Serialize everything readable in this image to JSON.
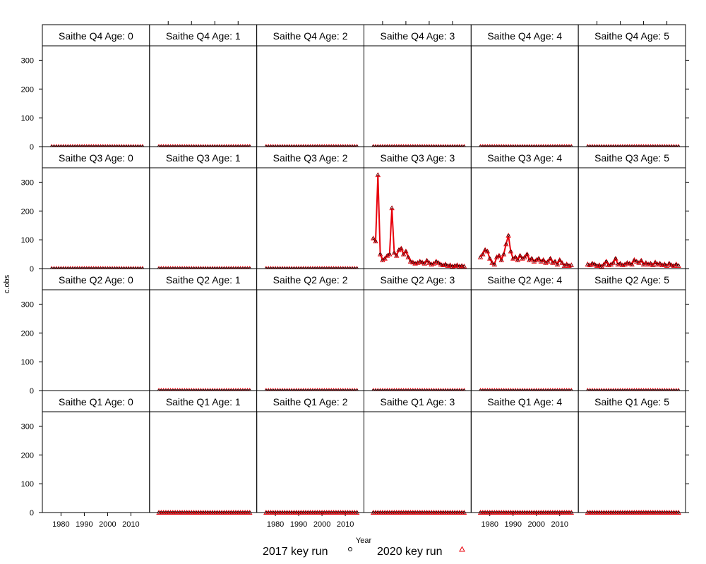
{
  "chart_data": {
    "type": "line",
    "layout": "lattice",
    "xlabel": "Year",
    "ylabel": "c.obs",
    "ylim": [
      0,
      350
    ],
    "xlim": [
      1972,
      2018
    ],
    "x_ticks": [
      1980,
      1990,
      2000,
      2010
    ],
    "y_ticks": [
      0,
      100,
      200,
      300
    ],
    "years": [
      1976,
      1977,
      1978,
      1979,
      1980,
      1981,
      1982,
      1983,
      1984,
      1985,
      1986,
      1987,
      1988,
      1989,
      1990,
      1991,
      1992,
      1993,
      1994,
      1995,
      1996,
      1997,
      1998,
      1999,
      2000,
      2001,
      2002,
      2003,
      2004,
      2005,
      2006,
      2007,
      2008,
      2009,
      2010,
      2011,
      2012,
      2013,
      2014,
      2015
    ],
    "legend": [
      {
        "label": "2017 key run",
        "symbol": "circle",
        "color": "#000000"
      },
      {
        "label": "2020 key run",
        "symbol": "triangle",
        "color": "#e8000b"
      }
    ],
    "line_color": "#e8000b",
    "panels": [
      {
        "title": "Saithe Q4 Age: 0",
        "quarter": 4,
        "age": 0,
        "values": "zeros"
      },
      {
        "title": "Saithe Q4 Age: 1",
        "quarter": 4,
        "age": 1,
        "values": "zeros"
      },
      {
        "title": "Saithe Q4 Age: 2",
        "quarter": 4,
        "age": 2,
        "values": "zeros"
      },
      {
        "title": "Saithe Q4 Age: 3",
        "quarter": 4,
        "age": 3,
        "values": "zeros"
      },
      {
        "title": "Saithe Q4 Age: 4",
        "quarter": 4,
        "age": 4,
        "values": "zeros"
      },
      {
        "title": "Saithe Q4 Age: 5",
        "quarter": 4,
        "age": 5,
        "values": "zeros"
      },
      {
        "title": "Saithe Q3 Age: 0",
        "quarter": 3,
        "age": 0,
        "values": "zeros"
      },
      {
        "title": "Saithe Q3 Age: 1",
        "quarter": 3,
        "age": 1,
        "values": "zeros"
      },
      {
        "title": "Saithe Q3 Age: 2",
        "quarter": 3,
        "age": 2,
        "values": "zeros"
      },
      {
        "title": "Saithe Q3 Age: 3",
        "quarter": 3,
        "age": 3,
        "values": [
          105,
          95,
          325,
          50,
          30,
          35,
          45,
          50,
          210,
          55,
          45,
          65,
          70,
          50,
          60,
          40,
          25,
          22,
          18,
          20,
          25,
          22,
          18,
          28,
          20,
          15,
          18,
          25,
          20,
          15,
          12,
          15,
          10,
          12,
          8,
          10,
          12,
          8,
          10,
          8
        ]
      },
      {
        "title": "Saithe Q3 Age: 4",
        "quarter": 3,
        "age": 4,
        "values": [
          40,
          50,
          65,
          60,
          35,
          20,
          15,
          40,
          45,
          30,
          50,
          85,
          115,
          60,
          35,
          40,
          30,
          45,
          35,
          40,
          50,
          30,
          35,
          25,
          30,
          35,
          25,
          30,
          20,
          25,
          35,
          20,
          25,
          15,
          30,
          20,
          10,
          15,
          10,
          12
        ]
      },
      {
        "title": "Saithe Q3 Age: 5",
        "quarter": 3,
        "age": 5,
        "values": [
          15,
          12,
          18,
          15,
          10,
          12,
          8,
          15,
          25,
          12,
          15,
          20,
          35,
          15,
          18,
          12,
          15,
          20,
          18,
          15,
          30,
          25,
          20,
          28,
          15,
          20,
          15,
          18,
          12,
          22,
          15,
          18,
          12,
          15,
          10,
          18,
          12,
          10,
          15,
          10
        ]
      },
      {
        "title": "Saithe Q2 Age: 0",
        "quarter": 2,
        "age": 0,
        "values": "none"
      },
      {
        "title": "Saithe Q2 Age: 1",
        "quarter": 2,
        "age": 1,
        "values": "zeros"
      },
      {
        "title": "Saithe Q2 Age: 2",
        "quarter": 2,
        "age": 2,
        "values": "zeros"
      },
      {
        "title": "Saithe Q2 Age: 3",
        "quarter": 2,
        "age": 3,
        "values": "zeros"
      },
      {
        "title": "Saithe Q2 Age: 4",
        "quarter": 2,
        "age": 4,
        "values": "zeros"
      },
      {
        "title": "Saithe Q2 Age: 5",
        "quarter": 2,
        "age": 5,
        "values": "zeros"
      },
      {
        "title": "Saithe Q1 Age: 0",
        "quarter": 1,
        "age": 0,
        "values": "none"
      },
      {
        "title": "Saithe Q1 Age: 1",
        "quarter": 1,
        "age": 1,
        "values": "zeros"
      },
      {
        "title": "Saithe Q1 Age: 2",
        "quarter": 1,
        "age": 2,
        "values": "zeros"
      },
      {
        "title": "Saithe Q1 Age: 3",
        "quarter": 1,
        "age": 3,
        "values": "zeros"
      },
      {
        "title": "Saithe Q1 Age: 4",
        "quarter": 1,
        "age": 4,
        "values": "zeros"
      },
      {
        "title": "Saithe Q1 Age: 5",
        "quarter": 1,
        "age": 5,
        "values": "zeros"
      }
    ]
  }
}
